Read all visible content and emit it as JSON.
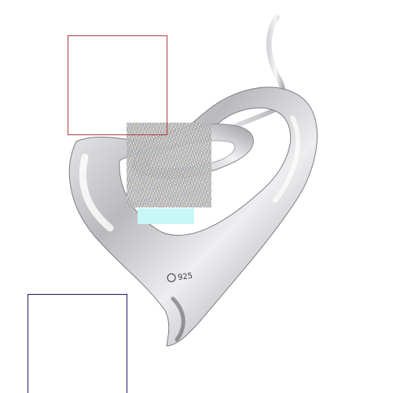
{
  "image": {
    "subject": "heart-pendant",
    "stamp_text": "925",
    "background_color": "#ffffff",
    "metal_color": "#c9c9cc",
    "outline_colors": {
      "red_box": "#b03a3a",
      "navy_box": "#1a1a6e"
    }
  }
}
